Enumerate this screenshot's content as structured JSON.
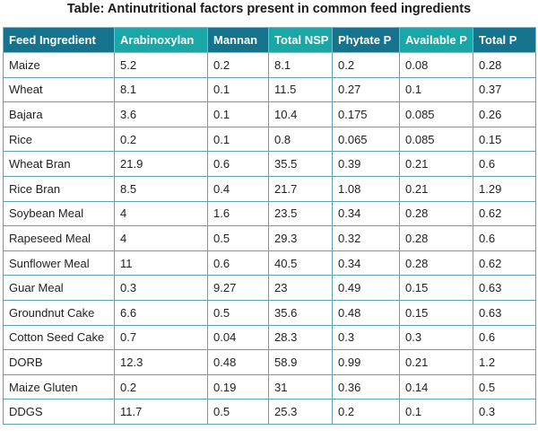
{
  "title": "Table: Antinutritional factors present in common feed ingredients",
  "header_colors": {
    "primary": "#16738e",
    "accent": "#1aa7a7",
    "border": "#5fa2b4"
  },
  "columns": [
    "Feed Ingredient",
    "Arabinoxylan",
    "Mannan",
    "Total NSP",
    "Phytate P",
    "Available P",
    "Total P"
  ],
  "rows": [
    [
      "Maize",
      "5.2",
      "0.2",
      "8.1",
      "0.2",
      "0.08",
      "0.28"
    ],
    [
      "Wheat",
      "8.1",
      "0.1",
      "11.5",
      "0.27",
      "0.1",
      "0.37"
    ],
    [
      "Bajara",
      "3.6",
      "0.1",
      "10.4",
      "0.175",
      "0.085",
      "0.26"
    ],
    [
      "Rice",
      "0.2",
      "0.1",
      "0.8",
      "0.065",
      "0.085",
      "0.15"
    ],
    [
      "Wheat Bran",
      "21.9",
      "0.6",
      "35.5",
      "0.39",
      "0.21",
      "0.6"
    ],
    [
      "Rice Bran",
      "8.5",
      "0.4",
      "21.7",
      "1.08",
      "0.21",
      "1.29"
    ],
    [
      "Soybean Meal",
      "4",
      "1.6",
      "23.5",
      "0.34",
      "0.28",
      "0.62"
    ],
    [
      "Rapeseed Meal",
      "4",
      "0.5",
      "29.3",
      "0.32",
      "0.28",
      "0.6"
    ],
    [
      "Sunflower Meal",
      "11",
      "0.6",
      "40.5",
      "0.34",
      "0.28",
      "0.62"
    ],
    [
      "Guar Meal",
      "0.3",
      "9.27",
      "23",
      "0.49",
      "0.15",
      "0.63"
    ],
    [
      "Groundnut Cake",
      "6.6",
      "0.5",
      "35.6",
      "0.48",
      "0.15",
      "0.63"
    ],
    [
      "Cotton Seed Cake",
      "0.7",
      "0.04",
      "28.3",
      "0.3",
      "0.3",
      "0.6"
    ],
    [
      "DORB",
      "12.3",
      "0.48",
      "58.9",
      "0.99",
      "0.21",
      "1.2"
    ],
    [
      "Maize Gluten",
      "0.2",
      "0.19",
      "31",
      "0.36",
      "0.14",
      "0.5"
    ],
    [
      "DDGS",
      "11.7",
      "0.5",
      "25.3",
      "0.2",
      "0.1",
      "0.3"
    ]
  ]
}
